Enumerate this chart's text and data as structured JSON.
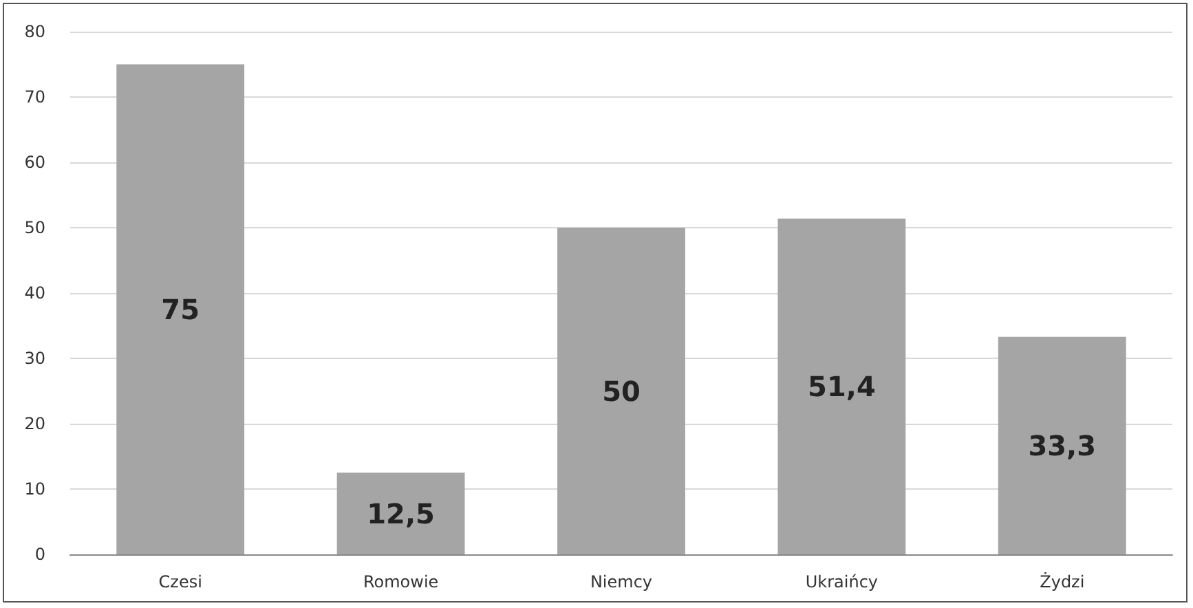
{
  "chart_data": {
    "type": "bar",
    "categories": [
      "Czesi",
      "Romowie",
      "Niemcy",
      "Ukraińcy",
      "Żydzi"
    ],
    "values": [
      75,
      12.5,
      50,
      51.4,
      33.3
    ],
    "value_labels": [
      "75",
      "12,5",
      "50",
      "51,4",
      "33,3"
    ],
    "color": "#a5a5a5",
    "ylim": [
      0,
      80
    ],
    "yticks": [
      0,
      10,
      20,
      30,
      40,
      50,
      60,
      70,
      80
    ],
    "grid": "y"
  }
}
